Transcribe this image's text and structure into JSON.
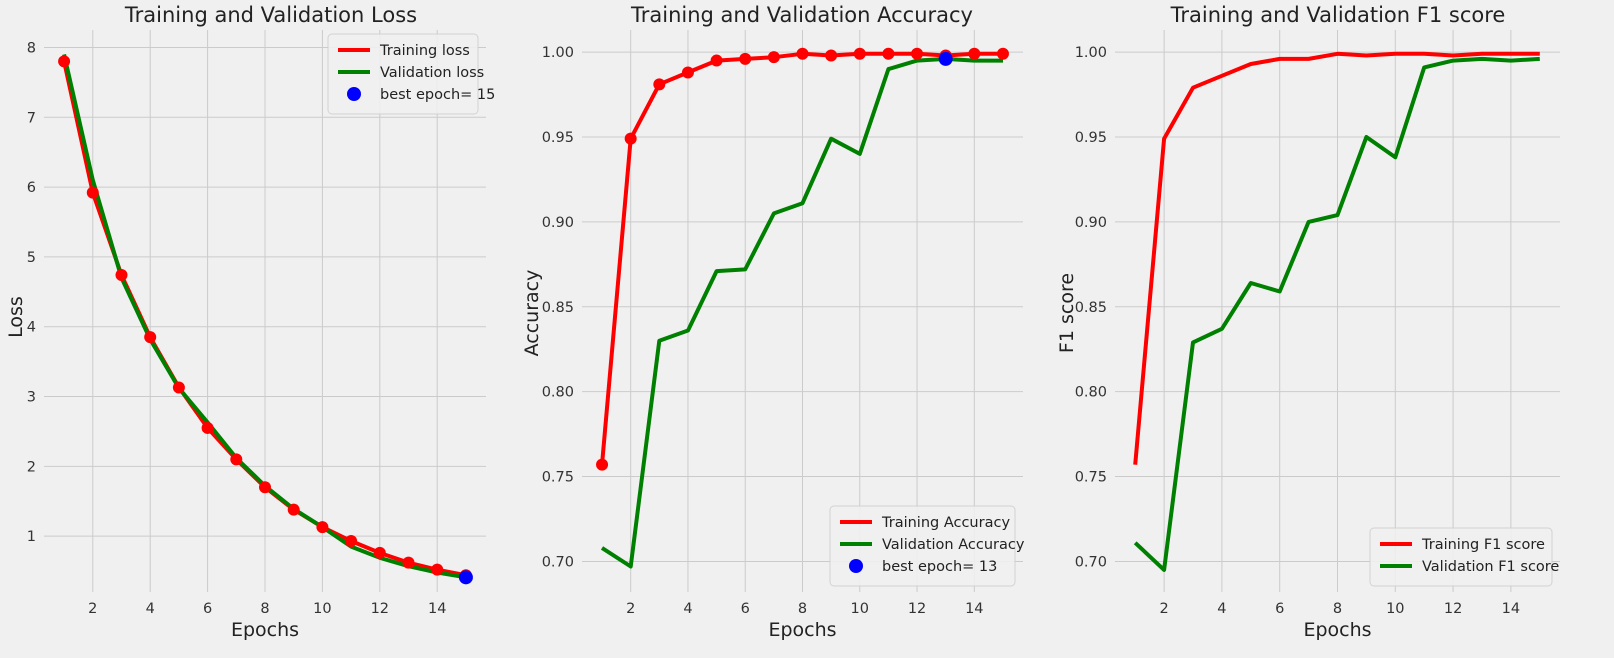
{
  "colors": {
    "background": "#f0f0f0",
    "training": "#ff0000",
    "validation": "#008000",
    "best": "#0000ff",
    "grid": "#cbcbcb"
  },
  "chart_data": [
    {
      "type": "line",
      "title": "Training and Validation Loss",
      "xlabel": "Epochs",
      "ylabel": "Loss",
      "xlim": [
        0.3,
        15.7
      ],
      "ylim": [
        0.2,
        8.25
      ],
      "xticks": [
        2,
        4,
        6,
        8,
        10,
        12,
        14
      ],
      "yticks": [
        1,
        2,
        3,
        4,
        5,
        6,
        7,
        8
      ],
      "tick_labels_y": [
        "1",
        "2",
        "3",
        "4",
        "5",
        "6",
        "7",
        "8"
      ],
      "grid": true,
      "legend_position": "top-right",
      "x": [
        1,
        2,
        3,
        4,
        5,
        6,
        7,
        8,
        9,
        10,
        11,
        12,
        13,
        14,
        15
      ],
      "series": [
        {
          "name": "Training loss",
          "color": "#ff0000",
          "markers": true,
          "values": [
            7.8,
            5.92,
            4.74,
            3.85,
            3.13,
            2.55,
            2.1,
            1.7,
            1.38,
            1.13,
            0.93,
            0.76,
            0.62,
            0.52,
            0.44
          ]
        },
        {
          "name": "Validation loss",
          "color": "#008000",
          "markers": false,
          "values": [
            7.9,
            6.1,
            4.7,
            3.82,
            3.12,
            2.63,
            2.12,
            1.72,
            1.39,
            1.13,
            0.85,
            0.69,
            0.57,
            0.48,
            0.41
          ]
        }
      ],
      "best_point": {
        "label": "best epoch= 15",
        "x": 15,
        "y": 0.41,
        "color": "#0000ff"
      }
    },
    {
      "type": "line",
      "title": "Training and Validation Accuracy",
      "xlabel": "Epochs",
      "ylabel": "Accuracy",
      "xlim": [
        0.3,
        15.7
      ],
      "ylim": [
        0.682,
        1.013
      ],
      "xticks": [
        2,
        4,
        6,
        8,
        10,
        12,
        14
      ],
      "yticks": [
        0.7,
        0.75,
        0.8,
        0.85,
        0.9,
        0.95,
        1.0
      ],
      "tick_labels_y": [
        "0.70",
        "0.75",
        "0.80",
        "0.85",
        "0.90",
        "0.95",
        "1.00"
      ],
      "grid": true,
      "legend_position": "bottom-right",
      "x": [
        1,
        2,
        3,
        4,
        5,
        6,
        7,
        8,
        9,
        10,
        11,
        12,
        13,
        14,
        15
      ],
      "series": [
        {
          "name": "Training Accuracy",
          "color": "#ff0000",
          "markers": true,
          "values": [
            0.757,
            0.949,
            0.981,
            0.988,
            0.995,
            0.996,
            0.997,
            0.999,
            0.998,
            0.999,
            0.999,
            0.999,
            0.998,
            0.999,
            0.999
          ]
        },
        {
          "name": "Validation Accuracy",
          "color": "#008000",
          "markers": false,
          "values": [
            0.708,
            0.697,
            0.83,
            0.836,
            0.871,
            0.872,
            0.905,
            0.911,
            0.949,
            0.94,
            0.99,
            0.995,
            0.996,
            0.995,
            0.995
          ]
        }
      ],
      "best_point": {
        "label": "best epoch= 13",
        "x": 13,
        "y": 0.996,
        "color": "#0000ff"
      }
    },
    {
      "type": "line",
      "title": "Training and Validation F1 score",
      "xlabel": "Epochs",
      "ylabel": "F1  score",
      "xlim": [
        0.3,
        15.7
      ],
      "ylim": [
        0.682,
        1.013
      ],
      "xticks": [
        2,
        4,
        6,
        8,
        10,
        12,
        14
      ],
      "yticks": [
        0.7,
        0.75,
        0.8,
        0.85,
        0.9,
        0.95,
        1.0
      ],
      "tick_labels_y": [
        "0.70",
        "0.75",
        "0.80",
        "0.85",
        "0.90",
        "0.95",
        "1.00"
      ],
      "grid": true,
      "legend_position": "bottom-right",
      "x": [
        1,
        2,
        3,
        4,
        5,
        6,
        7,
        8,
        9,
        10,
        11,
        12,
        13,
        14,
        15
      ],
      "series": [
        {
          "name": "Training F1 score",
          "color": "#ff0000",
          "markers": false,
          "values": [
            0.757,
            0.949,
            0.979,
            0.986,
            0.993,
            0.996,
            0.996,
            0.999,
            0.998,
            0.999,
            0.999,
            0.998,
            0.999,
            0.999,
            0.999
          ]
        },
        {
          "name": "Validation F1 score",
          "color": "#008000",
          "markers": false,
          "values": [
            0.711,
            0.695,
            0.829,
            0.837,
            0.864,
            0.859,
            0.9,
            0.904,
            0.95,
            0.938,
            0.991,
            0.995,
            0.996,
            0.995,
            0.996
          ]
        }
      ]
    }
  ]
}
